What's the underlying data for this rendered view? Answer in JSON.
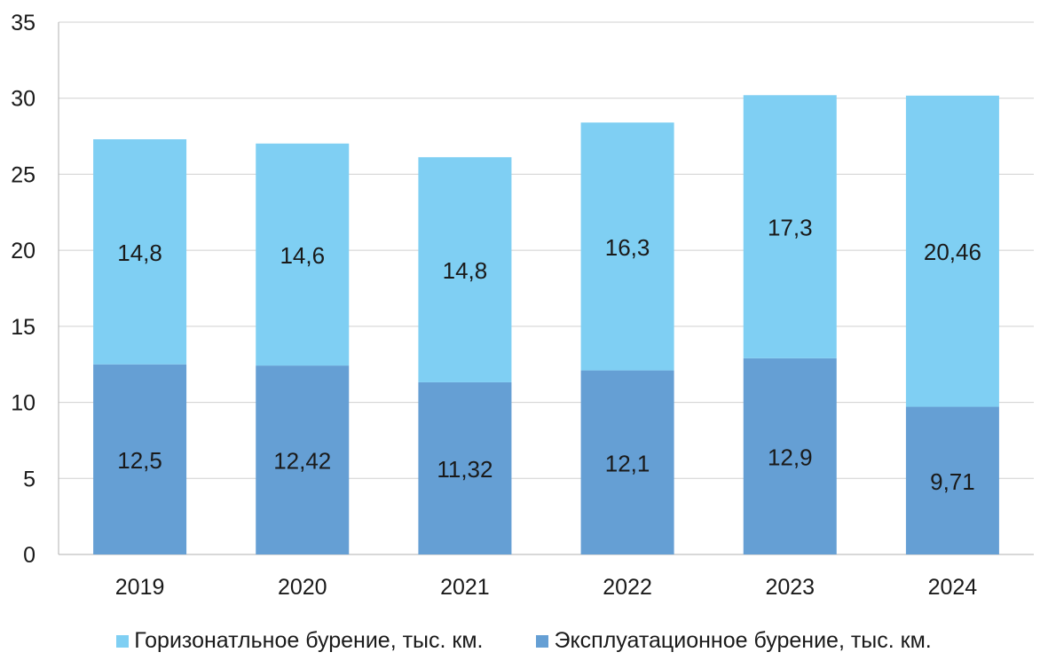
{
  "chart_data": {
    "type": "bar",
    "stacked": true,
    "title": "",
    "xlabel": "",
    "ylabel": "",
    "categories": [
      "2019",
      "2020",
      "2021",
      "2022",
      "2023",
      "2024"
    ],
    "series": [
      {
        "name": "Эксплуатационное бурение, тыс. км.",
        "values": [
          12.5,
          12.42,
          11.32,
          12.1,
          12.9,
          9.71
        ],
        "labels": [
          "12,5",
          "12,42",
          "11,32",
          "12,1",
          "12,9",
          "9,71"
        ],
        "color": "#659fd4"
      },
      {
        "name": "Горизонатльное бурение, тыс. км.",
        "values": [
          14.8,
          14.6,
          14.8,
          16.3,
          17.3,
          20.46
        ],
        "labels": [
          "14,8",
          "14,6",
          "14,8",
          "16,3",
          "17,3",
          "20,46"
        ],
        "color": "#7fcff3"
      }
    ],
    "ylim": [
      0,
      35
    ],
    "yticks": [
      0,
      5,
      10,
      15,
      20,
      25,
      30,
      35
    ],
    "grid": true,
    "legend_position": "bottom",
    "legend": [
      {
        "label": "Горизонатльное бурение, тыс. км.",
        "color": "#7fcff3"
      },
      {
        "label": "Эксплуатационное бурение, тыс. км.",
        "color": "#659fd4"
      }
    ]
  }
}
